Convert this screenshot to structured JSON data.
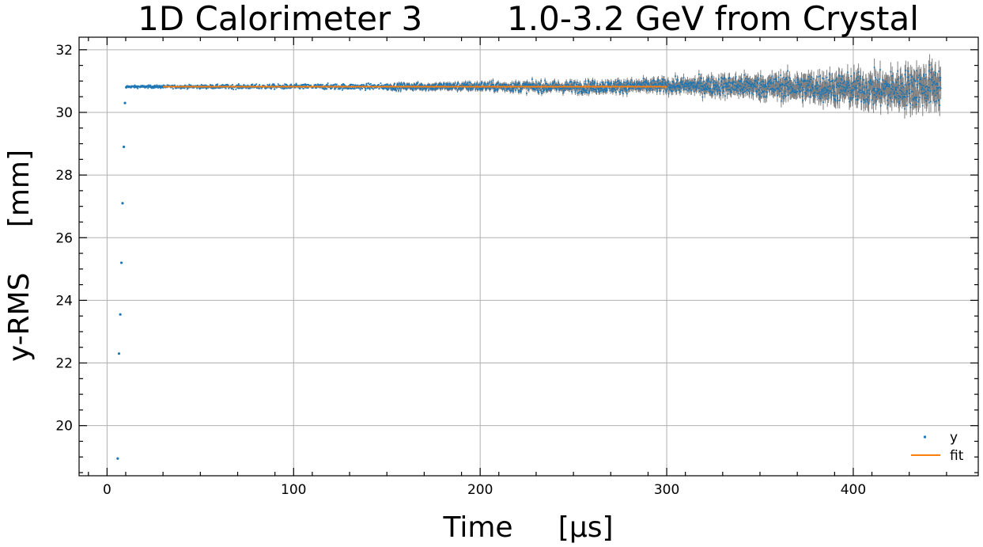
{
  "chart_data": {
    "type": "scatter",
    "title": "1D Calorimeter 3        1.0-3.2 GeV from Crystal",
    "xlabel": "Time     [µs]",
    "ylabel": "y-RMS     [mm]",
    "xlim": [
      -15,
      467
    ],
    "ylim": [
      18.4,
      32.4
    ],
    "xticks": [
      0,
      100,
      200,
      300,
      400
    ],
    "yticks": [
      20,
      22,
      24,
      26,
      28,
      30,
      32
    ],
    "xtick_labels": [
      "0",
      "100",
      "200",
      "300",
      "400"
    ],
    "ytick_labels": [
      "20",
      "22",
      "24",
      "26",
      "28",
      "30",
      "32"
    ],
    "grid": true,
    "legend_position": "bottom-right",
    "early_points": {
      "x": [
        5.7,
        6.4,
        7.1,
        7.7,
        8.3,
        9.0,
        9.6,
        10.3
      ],
      "y": [
        18.95,
        22.3,
        23.55,
        25.2,
        27.1,
        28.9,
        30.3,
        30.8
      ]
    },
    "trend": {
      "x": [
        11,
        50,
        100,
        150,
        200,
        250,
        300,
        330,
        360,
        390,
        420,
        447
      ],
      "y": [
        30.82,
        30.82,
        30.82,
        30.82,
        30.83,
        30.81,
        30.85,
        30.85,
        30.82,
        30.78,
        30.72,
        30.85
      ],
      "error": [
        0.02,
        0.03,
        0.04,
        0.05,
        0.07,
        0.09,
        0.12,
        0.16,
        0.2,
        0.25,
        0.3,
        0.35
      ],
      "scatter": [
        0.02,
        0.03,
        0.04,
        0.05,
        0.07,
        0.09,
        0.1,
        0.15,
        0.18,
        0.22,
        0.28,
        0.32
      ]
    },
    "series": [
      {
        "name": "y",
        "color": "#1f77b4",
        "kind": "points",
        "ecolor": "#808080"
      },
      {
        "name": "fit",
        "color": "#ff7f0e",
        "kind": "line",
        "x": [
          30,
          300
        ],
        "y": [
          30.82,
          30.82
        ]
      }
    ]
  }
}
